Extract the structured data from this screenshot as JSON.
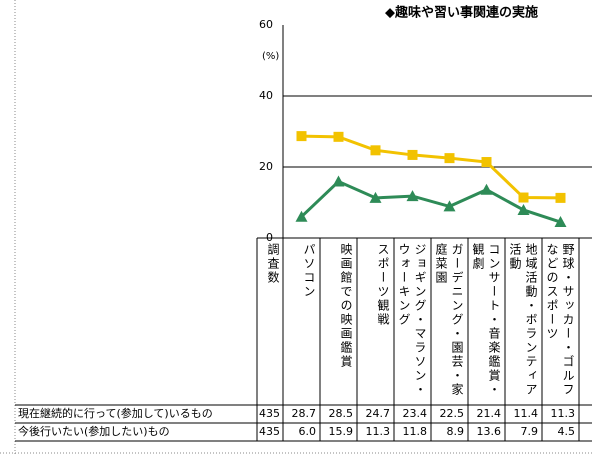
{
  "chart_data": {
    "type": "line",
    "title": "◆趣味や習い事関連の実施",
    "y_unit": "(%)",
    "ylim": [
      0,
      60
    ],
    "yticks": [
      0,
      20,
      40,
      60
    ],
    "grid": true,
    "sample_size_label": "調査数",
    "categories": [
      "パソコン",
      "映画館での映画鑑賞",
      "スポーツ観戦",
      "ジョギング・マラソン・ウォーキング",
      "ガーデニング・園芸・家庭菜園",
      "コンサート・音楽鑑賞・観劇",
      "地域活動・ボランティア活動",
      "野球・サッカー・ゴルフなどのスポーツ"
    ],
    "series": [
      {
        "name": "現在継続的に行って(参加して)いるもの",
        "color": "#f2c200",
        "marker": "square",
        "sample_size": 435,
        "values": [
          28.7,
          28.5,
          24.7,
          23.4,
          22.5,
          21.4,
          11.4,
          11.3
        ]
      },
      {
        "name": "今後行いたい(参加したい)もの",
        "color": "#2e8b57",
        "marker": "triangle",
        "sample_size": 435,
        "values": [
          6.0,
          15.9,
          11.3,
          11.8,
          8.9,
          13.6,
          7.9,
          4.5
        ],
        "value_labels": [
          "6.0",
          "15.9",
          "11.3",
          "11.8",
          "8.9",
          "13.6",
          "7.9",
          "4.5"
        ]
      }
    ]
  }
}
